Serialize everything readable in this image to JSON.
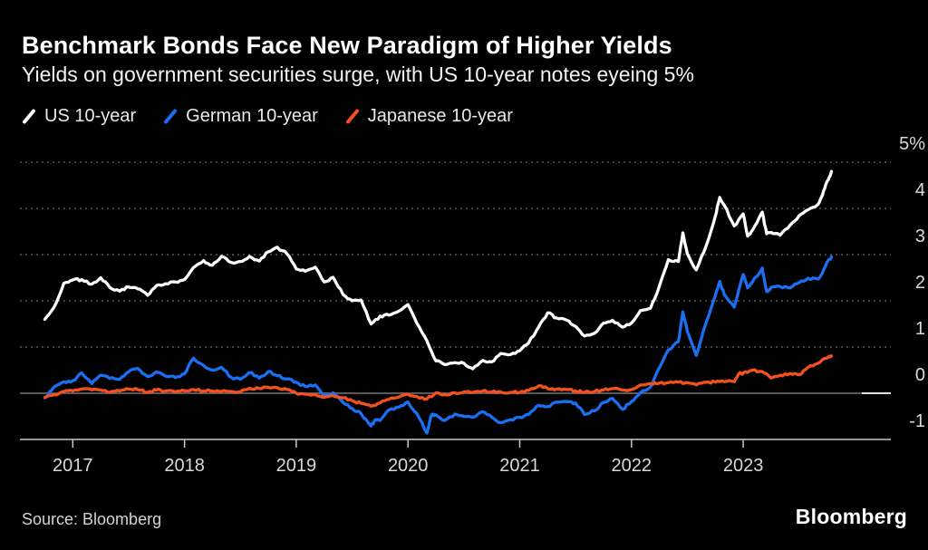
{
  "footer": {
    "source": "Source: Bloomberg",
    "brand": "Bloomberg"
  },
  "chart_data": {
    "type": "line",
    "title": "Benchmark Bonds Face New Paradigm of Higher Yields",
    "subtitle": "Yields on government securities surge, with US 10-year notes eyeing 5%",
    "legend_position": "top-left",
    "grid": "dotted horizontal",
    "background_color": "#000000",
    "x_axis": {
      "range": [
        2016.5,
        2024.3
      ],
      "ticks": [
        {
          "label": "2017",
          "value": 2017
        },
        {
          "label": "2018",
          "value": 2018
        },
        {
          "label": "2019",
          "value": 2019
        },
        {
          "label": "2020",
          "value": 2020
        },
        {
          "label": "2021",
          "value": 2021
        },
        {
          "label": "2022",
          "value": 2022
        },
        {
          "label": "2023",
          "value": 2023
        }
      ]
    },
    "y_axis": {
      "unit": "%",
      "range": [
        -1,
        5
      ],
      "zero_line": true,
      "ticks": [
        {
          "label": "5%",
          "value": 5
        },
        {
          "label": "4",
          "value": 4
        },
        {
          "label": "3",
          "value": 3
        },
        {
          "label": "2",
          "value": 2
        },
        {
          "label": "1",
          "value": 1
        },
        {
          "label": "0",
          "value": 0
        },
        {
          "label": "-1",
          "value": -1
        }
      ]
    },
    "series": [
      {
        "name": "US 10-year",
        "color": "#ffffff",
        "points": [
          [
            2016.75,
            1.6
          ],
          [
            2016.83,
            1.85
          ],
          [
            2016.92,
            2.38
          ],
          [
            2017.0,
            2.45
          ],
          [
            2017.08,
            2.46
          ],
          [
            2017.17,
            2.36
          ],
          [
            2017.25,
            2.5
          ],
          [
            2017.33,
            2.29
          ],
          [
            2017.42,
            2.21
          ],
          [
            2017.5,
            2.3
          ],
          [
            2017.58,
            2.26
          ],
          [
            2017.67,
            2.12
          ],
          [
            2017.75,
            2.33
          ],
          [
            2017.83,
            2.37
          ],
          [
            2017.92,
            2.41
          ],
          [
            2018.0,
            2.46
          ],
          [
            2018.08,
            2.72
          ],
          [
            2018.17,
            2.87
          ],
          [
            2018.25,
            2.77
          ],
          [
            2018.33,
            2.96
          ],
          [
            2018.42,
            2.83
          ],
          [
            2018.5,
            2.85
          ],
          [
            2018.58,
            2.96
          ],
          [
            2018.67,
            2.86
          ],
          [
            2018.75,
            3.06
          ],
          [
            2018.83,
            3.16
          ],
          [
            2018.92,
            3.01
          ],
          [
            2019.0,
            2.69
          ],
          [
            2019.08,
            2.64
          ],
          [
            2019.17,
            2.73
          ],
          [
            2019.25,
            2.41
          ],
          [
            2019.33,
            2.51
          ],
          [
            2019.42,
            2.13
          ],
          [
            2019.5,
            2.0
          ],
          [
            2019.58,
            2.02
          ],
          [
            2019.67,
            1.5
          ],
          [
            2019.75,
            1.67
          ],
          [
            2019.83,
            1.69
          ],
          [
            2019.92,
            1.78
          ],
          [
            2020.0,
            1.92
          ],
          [
            2020.08,
            1.51
          ],
          [
            2020.17,
            1.13
          ],
          [
            2020.25,
            0.7
          ],
          [
            2020.33,
            0.62
          ],
          [
            2020.42,
            0.66
          ],
          [
            2020.5,
            0.65
          ],
          [
            2020.58,
            0.53
          ],
          [
            2020.67,
            0.71
          ],
          [
            2020.75,
            0.68
          ],
          [
            2020.83,
            0.86
          ],
          [
            2020.92,
            0.84
          ],
          [
            2021.0,
            0.92
          ],
          [
            2021.08,
            1.09
          ],
          [
            2021.17,
            1.44
          ],
          [
            2021.25,
            1.74
          ],
          [
            2021.33,
            1.63
          ],
          [
            2021.42,
            1.58
          ],
          [
            2021.5,
            1.45
          ],
          [
            2021.58,
            1.24
          ],
          [
            2021.67,
            1.3
          ],
          [
            2021.75,
            1.52
          ],
          [
            2021.83,
            1.58
          ],
          [
            2021.92,
            1.43
          ],
          [
            2022.0,
            1.52
          ],
          [
            2022.08,
            1.79
          ],
          [
            2022.17,
            1.84
          ],
          [
            2022.25,
            2.32
          ],
          [
            2022.33,
            2.89
          ],
          [
            2022.42,
            2.85
          ],
          [
            2022.46,
            3.47
          ],
          [
            2022.5,
            3.02
          ],
          [
            2022.58,
            2.67
          ],
          [
            2022.67,
            3.2
          ],
          [
            2022.75,
            3.83
          ],
          [
            2022.79,
            4.24
          ],
          [
            2022.83,
            4.07
          ],
          [
            2022.92,
            3.62
          ],
          [
            2023.0,
            3.88
          ],
          [
            2023.04,
            3.4
          ],
          [
            2023.08,
            3.52
          ],
          [
            2023.17,
            3.92
          ],
          [
            2023.21,
            3.45
          ],
          [
            2023.25,
            3.48
          ],
          [
            2023.33,
            3.42
          ],
          [
            2023.42,
            3.64
          ],
          [
            2023.5,
            3.84
          ],
          [
            2023.58,
            3.97
          ],
          [
            2023.67,
            4.09
          ],
          [
            2023.71,
            4.29
          ],
          [
            2023.75,
            4.58
          ],
          [
            2023.79,
            4.8
          ]
        ]
      },
      {
        "name": "German 10-year",
        "color": "#1a6ff2",
        "points": [
          [
            2016.75,
            -0.1
          ],
          [
            2016.83,
            0.13
          ],
          [
            2016.92,
            0.25
          ],
          [
            2017.0,
            0.27
          ],
          [
            2017.08,
            0.44
          ],
          [
            2017.17,
            0.21
          ],
          [
            2017.25,
            0.39
          ],
          [
            2017.33,
            0.32
          ],
          [
            2017.42,
            0.3
          ],
          [
            2017.5,
            0.46
          ],
          [
            2017.58,
            0.54
          ],
          [
            2017.67,
            0.36
          ],
          [
            2017.75,
            0.46
          ],
          [
            2017.83,
            0.37
          ],
          [
            2017.92,
            0.34
          ],
          [
            2018.0,
            0.42
          ],
          [
            2018.08,
            0.76
          ],
          [
            2018.17,
            0.6
          ],
          [
            2018.25,
            0.5
          ],
          [
            2018.33,
            0.56
          ],
          [
            2018.42,
            0.34
          ],
          [
            2018.5,
            0.3
          ],
          [
            2018.58,
            0.45
          ],
          [
            2018.67,
            0.33
          ],
          [
            2018.75,
            0.47
          ],
          [
            2018.83,
            0.38
          ],
          [
            2018.92,
            0.31
          ],
          [
            2019.0,
            0.24
          ],
          [
            2019.08,
            0.15
          ],
          [
            2019.17,
            0.18
          ],
          [
            2019.25,
            -0.07
          ],
          [
            2019.33,
            0.01
          ],
          [
            2019.42,
            -0.2
          ],
          [
            2019.5,
            -0.33
          ],
          [
            2019.58,
            -0.44
          ],
          [
            2019.67,
            -0.71
          ],
          [
            2019.71,
            -0.57
          ],
          [
            2019.75,
            -0.59
          ],
          [
            2019.83,
            -0.36
          ],
          [
            2019.92,
            -0.3
          ],
          [
            2020.0,
            -0.19
          ],
          [
            2020.08,
            -0.44
          ],
          [
            2020.17,
            -0.86
          ],
          [
            2020.21,
            -0.47
          ],
          [
            2020.25,
            -0.47
          ],
          [
            2020.33,
            -0.59
          ],
          [
            2020.42,
            -0.45
          ],
          [
            2020.5,
            -0.5
          ],
          [
            2020.58,
            -0.52
          ],
          [
            2020.67,
            -0.4
          ],
          [
            2020.75,
            -0.52
          ],
          [
            2020.83,
            -0.64
          ],
          [
            2020.92,
            -0.57
          ],
          [
            2021.0,
            -0.52
          ],
          [
            2021.08,
            -0.46
          ],
          [
            2021.17,
            -0.26
          ],
          [
            2021.25,
            -0.29
          ],
          [
            2021.33,
            -0.19
          ],
          [
            2021.42,
            -0.18
          ],
          [
            2021.5,
            -0.21
          ],
          [
            2021.58,
            -0.46
          ],
          [
            2021.67,
            -0.38
          ],
          [
            2021.75,
            -0.2
          ],
          [
            2021.83,
            -0.11
          ],
          [
            2021.92,
            -0.35
          ],
          [
            2022.0,
            -0.18
          ],
          [
            2022.08,
            0.01
          ],
          [
            2022.17,
            0.14
          ],
          [
            2022.25,
            0.55
          ],
          [
            2022.33,
            0.94
          ],
          [
            2022.42,
            1.12
          ],
          [
            2022.46,
            1.76
          ],
          [
            2022.5,
            1.34
          ],
          [
            2022.58,
            0.82
          ],
          [
            2022.67,
            1.54
          ],
          [
            2022.75,
            2.11
          ],
          [
            2022.79,
            2.42
          ],
          [
            2022.83,
            2.14
          ],
          [
            2022.92,
            1.86
          ],
          [
            2023.0,
            2.57
          ],
          [
            2023.04,
            2.28
          ],
          [
            2023.08,
            2.4
          ],
          [
            2023.17,
            2.71
          ],
          [
            2023.21,
            2.2
          ],
          [
            2023.25,
            2.29
          ],
          [
            2023.33,
            2.31
          ],
          [
            2023.42,
            2.28
          ],
          [
            2023.5,
            2.39
          ],
          [
            2023.58,
            2.49
          ],
          [
            2023.67,
            2.47
          ],
          [
            2023.71,
            2.61
          ],
          [
            2023.75,
            2.84
          ],
          [
            2023.79,
            2.95
          ]
        ]
      },
      {
        "name": "Japanese 10-year",
        "color": "#f4511e",
        "points": [
          [
            2016.75,
            -0.09
          ],
          [
            2016.83,
            -0.03
          ],
          [
            2016.92,
            0.04
          ],
          [
            2017.0,
            0.05
          ],
          [
            2017.08,
            0.09
          ],
          [
            2017.17,
            0.07
          ],
          [
            2017.25,
            0.07
          ],
          [
            2017.33,
            0.02
          ],
          [
            2017.42,
            0.05
          ],
          [
            2017.5,
            0.09
          ],
          [
            2017.58,
            0.08
          ],
          [
            2017.67,
            0.02
          ],
          [
            2017.75,
            0.07
          ],
          [
            2017.83,
            0.05
          ],
          [
            2017.92,
            0.03
          ],
          [
            2018.0,
            0.05
          ],
          [
            2018.08,
            0.08
          ],
          [
            2018.17,
            0.05
          ],
          [
            2018.25,
            0.05
          ],
          [
            2018.33,
            0.04
          ],
          [
            2018.42,
            0.04
          ],
          [
            2018.5,
            0.03
          ],
          [
            2018.58,
            0.11
          ],
          [
            2018.67,
            0.1
          ],
          [
            2018.75,
            0.13
          ],
          [
            2018.83,
            0.12
          ],
          [
            2018.92,
            0.08
          ],
          [
            2019.0,
            0.0
          ],
          [
            2019.08,
            -0.02
          ],
          [
            2019.17,
            -0.03
          ],
          [
            2019.25,
            -0.09
          ],
          [
            2019.33,
            -0.05
          ],
          [
            2019.42,
            -0.1
          ],
          [
            2019.5,
            -0.16
          ],
          [
            2019.58,
            -0.22
          ],
          [
            2019.67,
            -0.28
          ],
          [
            2019.75,
            -0.21
          ],
          [
            2019.83,
            -0.13
          ],
          [
            2019.92,
            -0.08
          ],
          [
            2020.0,
            -0.02
          ],
          [
            2020.08,
            -0.07
          ],
          [
            2020.17,
            -0.12
          ],
          [
            2020.25,
            0.01
          ],
          [
            2020.33,
            -0.03
          ],
          [
            2020.42,
            0.01
          ],
          [
            2020.5,
            0.03
          ],
          [
            2020.58,
            0.02
          ],
          [
            2020.67,
            0.05
          ],
          [
            2020.75,
            0.03
          ],
          [
            2020.83,
            0.03
          ],
          [
            2020.92,
            0.02
          ],
          [
            2021.0,
            0.02
          ],
          [
            2021.08,
            0.06
          ],
          [
            2021.17,
            0.16
          ],
          [
            2021.25,
            0.1
          ],
          [
            2021.33,
            0.09
          ],
          [
            2021.42,
            0.08
          ],
          [
            2021.5,
            0.05
          ],
          [
            2021.58,
            0.02
          ],
          [
            2021.67,
            0.04
          ],
          [
            2021.75,
            0.07
          ],
          [
            2021.83,
            0.1
          ],
          [
            2021.92,
            0.07
          ],
          [
            2022.0,
            0.08
          ],
          [
            2022.08,
            0.18
          ],
          [
            2022.17,
            0.21
          ],
          [
            2022.25,
            0.22
          ],
          [
            2022.33,
            0.23
          ],
          [
            2022.42,
            0.24
          ],
          [
            2022.5,
            0.23
          ],
          [
            2022.58,
            0.18
          ],
          [
            2022.67,
            0.24
          ],
          [
            2022.75,
            0.24
          ],
          [
            2022.83,
            0.25
          ],
          [
            2022.92,
            0.25
          ],
          [
            2022.96,
            0.42
          ],
          [
            2023.0,
            0.44
          ],
          [
            2023.08,
            0.5
          ],
          [
            2023.17,
            0.47
          ],
          [
            2023.25,
            0.33
          ],
          [
            2023.33,
            0.39
          ],
          [
            2023.42,
            0.43
          ],
          [
            2023.5,
            0.4
          ],
          [
            2023.58,
            0.56
          ],
          [
            2023.67,
            0.65
          ],
          [
            2023.75,
            0.76
          ],
          [
            2023.79,
            0.81
          ]
        ]
      }
    ]
  }
}
